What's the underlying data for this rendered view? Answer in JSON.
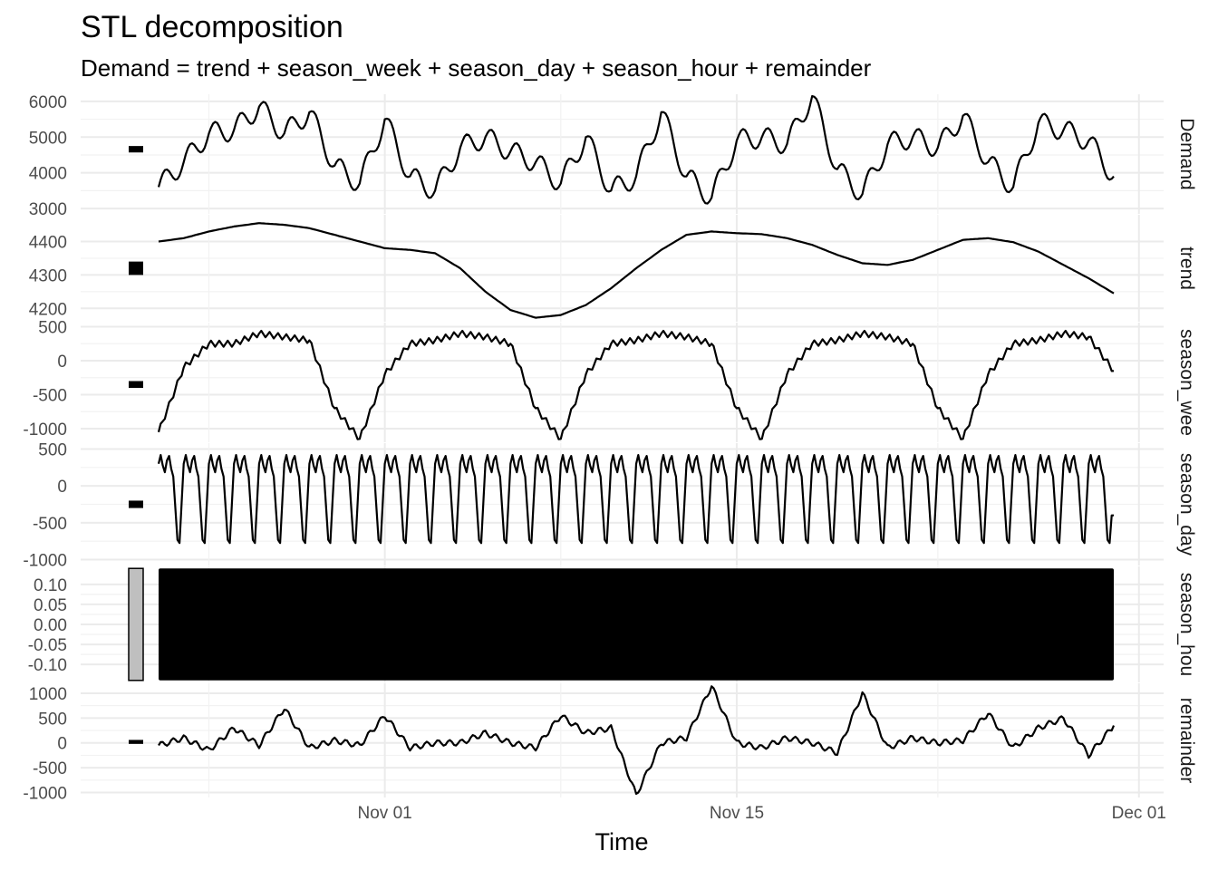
{
  "chart_data": {
    "type": "line",
    "title": "STL decomposition",
    "subtitle": "Demand = trend + season_week + season_day + season_hour + remainder",
    "xlabel": "Time",
    "x_range": [
      "2023-10-23",
      "2023-11-30"
    ],
    "x_ticks": [
      "Nov 01",
      "Nov 15",
      "Dec 01"
    ],
    "grid": true,
    "panels": [
      {
        "name": "Demand",
        "strip_label": "Demand",
        "ylim": [
          2850,
          6200
        ],
        "yticks": [
          3000,
          4000,
          5000,
          6000
        ],
        "yticklabels": [
          "3000",
          "4000",
          "5000",
          "6000"
        ],
        "scale_bar": [
          4570,
          4750
        ],
        "series": {
          "name": "Demand",
          "x": [
            "2023-10-23",
            "2023-10-24",
            "2023-10-25",
            "2023-10-26",
            "2023-10-27",
            "2023-10-28",
            "2023-10-29",
            "2023-10-30",
            "2023-10-31",
            "2023-11-01",
            "2023-11-02",
            "2023-11-03",
            "2023-11-04",
            "2023-11-05",
            "2023-11-06",
            "2023-11-07",
            "2023-11-08",
            "2023-11-09",
            "2023-11-10",
            "2023-11-11",
            "2023-11-12",
            "2023-11-13",
            "2023-11-14",
            "2023-11-15",
            "2023-11-16",
            "2023-11-17",
            "2023-11-18",
            "2023-11-19",
            "2023-11-20",
            "2023-11-21",
            "2023-11-22",
            "2023-11-23",
            "2023-11-24",
            "2023-11-25",
            "2023-11-26",
            "2023-11-27",
            "2023-11-28",
            "2023-11-29",
            "2023-11-30"
          ],
          "y": [
            3600,
            4300,
            5100,
            5200,
            5850,
            5100,
            5700,
            4200,
            3700,
            5500,
            3900,
            3500,
            4700,
            5000,
            4600,
            4300,
            3700,
            5000,
            3500,
            3900,
            5700,
            3900,
            3300,
            4900,
            5000,
            4800,
            6150,
            4100,
            3400,
            4800,
            5000,
            4700,
            5600,
            4300,
            3600,
            5400,
            5200,
            4900,
            3900
          ]
        }
      },
      {
        "name": "trend",
        "strip_label": "trend",
        "ylim": [
          4160,
          4480
        ],
        "yticks": [
          4200,
          4300,
          4400
        ],
        "yticklabels": [
          "4200",
          "4300",
          "4400"
        ],
        "scale_bar": [
          4300,
          4340
        ],
        "series": {
          "name": "trend",
          "x": [
            "2023-10-23",
            "2023-10-24",
            "2023-10-25",
            "2023-10-26",
            "2023-10-27",
            "2023-10-28",
            "2023-10-29",
            "2023-10-30",
            "2023-10-31",
            "2023-11-01",
            "2023-11-02",
            "2023-11-03",
            "2023-11-04",
            "2023-11-05",
            "2023-11-06",
            "2023-11-07",
            "2023-11-08",
            "2023-11-09",
            "2023-11-10",
            "2023-11-11",
            "2023-11-12",
            "2023-11-13",
            "2023-11-14",
            "2023-11-15",
            "2023-11-16",
            "2023-11-17",
            "2023-11-18",
            "2023-11-19",
            "2023-11-20",
            "2023-11-21",
            "2023-11-22",
            "2023-11-23",
            "2023-11-24",
            "2023-11-25",
            "2023-11-26",
            "2023-11-27",
            "2023-11-28",
            "2023-11-29",
            "2023-11-30"
          ],
          "y": [
            4400,
            4410,
            4430,
            4445,
            4455,
            4450,
            4440,
            4420,
            4400,
            4380,
            4375,
            4365,
            4320,
            4250,
            4195,
            4172,
            4180,
            4210,
            4260,
            4320,
            4375,
            4420,
            4430,
            4425,
            4422,
            4410,
            4390,
            4360,
            4335,
            4330,
            4345,
            4375,
            4405,
            4410,
            4398,
            4370,
            4330,
            4290,
            4245
          ]
        }
      },
      {
        "name": "season_week",
        "strip_label": "season_wee",
        "ylim": [
          -1200,
          560
        ],
        "yticks": [
          -1000,
          -500,
          0,
          500
        ],
        "yticklabels": [
          "-1000",
          "-500",
          "0",
          "500"
        ],
        "scale_bar": [
          -400,
          -300
        ],
        "series": {
          "name": "season_week",
          "x": [
            "2023-10-23",
            "2023-10-24",
            "2023-10-25",
            "2023-10-26",
            "2023-10-27",
            "2023-10-28",
            "2023-10-29",
            "2023-10-30",
            "2023-10-31",
            "2023-11-01",
            "2023-11-02",
            "2023-11-03",
            "2023-11-04",
            "2023-11-05",
            "2023-11-06",
            "2023-11-07",
            "2023-11-08",
            "2023-11-09",
            "2023-11-10",
            "2023-11-11",
            "2023-11-12",
            "2023-11-13",
            "2023-11-14",
            "2023-11-15",
            "2023-11-16",
            "2023-11-17",
            "2023-11-18",
            "2023-11-19",
            "2023-11-20",
            "2023-11-21",
            "2023-11-22",
            "2023-11-23",
            "2023-11-24",
            "2023-11-25",
            "2023-11-26",
            "2023-11-27",
            "2023-11-28",
            "2023-11-29",
            "2023-11-30"
          ],
          "y": [
            -1050,
            -100,
            250,
            250,
            400,
            350,
            300,
            -700,
            -1150,
            -200,
            250,
            300,
            400,
            350,
            250,
            -700,
            -1150,
            -200,
            250,
            300,
            400,
            350,
            250,
            -700,
            -1150,
            -200,
            250,
            300,
            400,
            350,
            250,
            -700,
            -1150,
            -200,
            250,
            300,
            400,
            350,
            -150
          ]
        }
      },
      {
        "name": "season_day",
        "strip_label": "season_day",
        "ylim": [
          -1080,
          580
        ],
        "yticks": [
          -1000,
          -500,
          0,
          500
        ],
        "yticklabels": [
          "-1000",
          "-500",
          "0",
          "500"
        ],
        "scale_bar": [
          -300,
          -200
        ],
        "series": {
          "name": "season_day",
          "x": [
            "2023-10-23",
            "2023-10-24",
            "2023-10-25",
            "2023-10-26",
            "2023-10-27",
            "2023-10-28",
            "2023-10-29",
            "2023-10-30",
            "2023-10-31",
            "2023-11-01",
            "2023-11-02",
            "2023-11-03",
            "2023-11-04",
            "2023-11-05",
            "2023-11-06",
            "2023-11-07",
            "2023-11-08",
            "2023-11-09",
            "2023-11-10",
            "2023-11-11",
            "2023-11-12",
            "2023-11-13",
            "2023-11-14",
            "2023-11-15",
            "2023-11-16",
            "2023-11-17",
            "2023-11-18",
            "2023-11-19",
            "2023-11-20",
            "2023-11-21",
            "2023-11-22",
            "2023-11-23",
            "2023-11-24",
            "2023-11-25",
            "2023-11-26",
            "2023-11-27",
            "2023-11-28",
            "2023-11-29",
            "2023-11-30"
          ],
          "y": [
            300,
            300,
            300,
            300,
            300,
            300,
            300,
            300,
            300,
            300,
            300,
            300,
            300,
            300,
            300,
            300,
            300,
            300,
            300,
            300,
            300,
            300,
            300,
            300,
            300,
            300,
            300,
            300,
            300,
            300,
            300,
            300,
            300,
            300,
            300,
            300,
            300,
            300,
            -400
          ]
        }
      },
      {
        "name": "season_hour",
        "strip_label": "season_hou",
        "ylim": [
          -0.145,
          0.145
        ],
        "yticks": [
          -0.1,
          -0.05,
          0,
          0.05,
          0.1
        ],
        "yticklabels": [
          "-0.10",
          "-0.05",
          "0.00",
          "0.05",
          "0.10"
        ],
        "scale_bar": [
          -0.14,
          0.14
        ],
        "series": {
          "name": "season_hour",
          "x": [
            "2023-10-23",
            "2023-11-30"
          ],
          "y_min": -0.14,
          "y_max": 0.14
        }
      },
      {
        "name": "remainder",
        "strip_label": "remainder",
        "ylim": [
          -1100,
          1200
        ],
        "yticks": [
          -1000,
          -500,
          0,
          500,
          1000
        ],
        "yticklabels": [
          "-1000",
          "-500",
          "0",
          "500",
          "1000"
        ],
        "scale_bar": [
          -20,
          60
        ],
        "series": {
          "name": "remainder",
          "x": [
            "2023-10-23",
            "2023-10-24",
            "2023-10-25",
            "2023-10-26",
            "2023-10-27",
            "2023-10-28",
            "2023-10-29",
            "2023-10-30",
            "2023-10-31",
            "2023-11-01",
            "2023-11-02",
            "2023-11-03",
            "2023-11-04",
            "2023-11-05",
            "2023-11-06",
            "2023-11-07",
            "2023-11-08",
            "2023-11-09",
            "2023-11-10",
            "2023-11-11",
            "2023-11-12",
            "2023-11-13",
            "2023-11-14",
            "2023-11-15",
            "2023-11-16",
            "2023-11-17",
            "2023-11-18",
            "2023-11-19",
            "2023-11-20",
            "2023-11-21",
            "2023-11-22",
            "2023-11-23",
            "2023-11-24",
            "2023-11-25",
            "2023-11-26",
            "2023-11-27",
            "2023-11-28",
            "2023-11-29",
            "2023-11-30"
          ],
          "y": [
            -50,
            100,
            -150,
            300,
            -50,
            700,
            -100,
            50,
            -50,
            550,
            -100,
            0,
            0,
            200,
            0,
            -100,
            550,
            200,
            300,
            -1050,
            0,
            100,
            1150,
            0,
            -100,
            100,
            0,
            -200,
            1000,
            -100,
            100,
            0,
            50,
            600,
            -100,
            300,
            500,
            -250,
            350
          ]
        }
      }
    ]
  }
}
